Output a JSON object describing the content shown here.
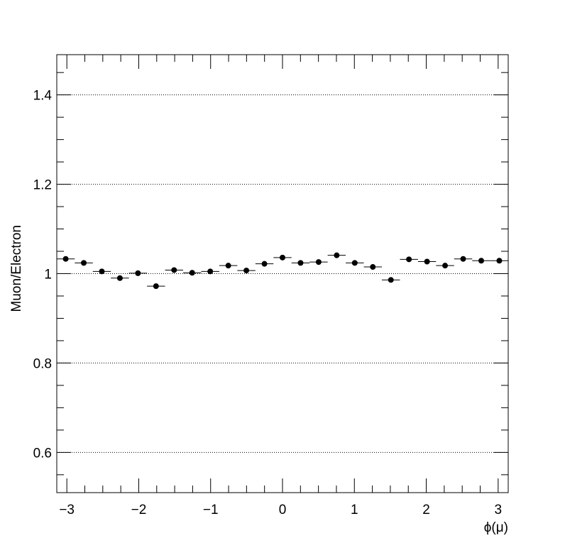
{
  "chart_data": {
    "type": "scatter",
    "title": "",
    "xlabel": "ϕ(μ)",
    "ylabel": "Muon/Electron",
    "xlim": [
      -3.14,
      3.14
    ],
    "ylim": [
      0.51,
      1.49
    ],
    "x_ticks": [
      -3,
      -2,
      -1,
      0,
      1,
      2,
      3
    ],
    "x_tick_labels": [
      "−3",
      "−2",
      "−1",
      "0",
      "1",
      "2",
      "3"
    ],
    "y_ticks": [
      0.6,
      0.8,
      1.0,
      1.2,
      1.4
    ],
    "y_tick_labels": [
      "0.6",
      "0.8",
      "1",
      "1.2",
      "1.4"
    ],
    "grid": "horizontal dotted at major y ticks",
    "legend": "none",
    "bin_width": 0.2513,
    "series": [
      {
        "x": [
          -3.0159,
          -2.7646,
          -2.5133,
          -2.2619,
          -2.0106,
          -1.7593,
          -1.508,
          -1.2566,
          -1.0053,
          -0.754,
          -0.5027,
          -0.2513,
          0.0,
          0.2513,
          0.5027,
          0.754,
          1.0053,
          1.2566,
          1.508,
          1.7593,
          2.0106,
          2.2619,
          2.5133,
          2.7646,
          3.0159
        ],
        "y": [
          1.033,
          1.024,
          1.005,
          0.99,
          1.001,
          0.972,
          1.008,
          1.002,
          1.005,
          1.018,
          1.007,
          1.022,
          1.036,
          1.024,
          1.026,
          1.041,
          1.024,
          1.015,
          0.986,
          1.032,
          1.027,
          1.018,
          1.033,
          1.029,
          1.029
        ]
      }
    ]
  }
}
